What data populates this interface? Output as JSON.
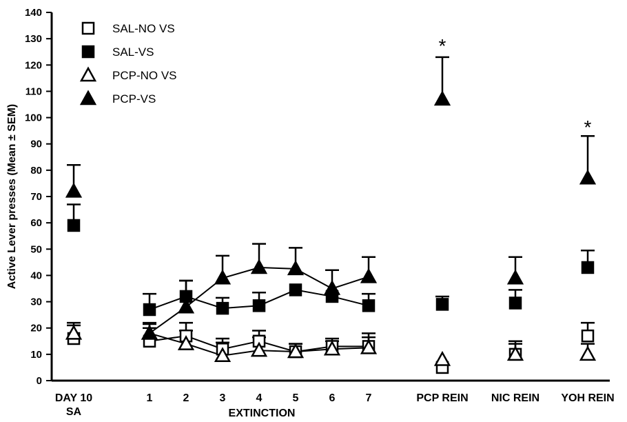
{
  "chart_data": {
    "type": "scatter",
    "ylabel": "Active Lever presses (Mean ± SEM)",
    "xlabel": "EXTINCTION",
    "ylim": [
      0,
      140
    ],
    "yticks": [
      0,
      10,
      20,
      30,
      40,
      50,
      60,
      70,
      80,
      90,
      100,
      110,
      120,
      130,
      140
    ],
    "grid": false,
    "legend_position": "top-left",
    "categories": [
      {
        "id": "day10",
        "lines": [
          "DAY 10",
          "SA"
        ]
      },
      {
        "id": "e1",
        "lines": [
          "1"
        ]
      },
      {
        "id": "e2",
        "lines": [
          "2"
        ]
      },
      {
        "id": "e3",
        "lines": [
          "3"
        ]
      },
      {
        "id": "e4",
        "lines": [
          "4"
        ]
      },
      {
        "id": "e5",
        "lines": [
          "5"
        ]
      },
      {
        "id": "e6",
        "lines": [
          "6"
        ]
      },
      {
        "id": "e7",
        "lines": [
          "7"
        ]
      },
      {
        "id": "pcp",
        "lines": [
          "PCP REIN"
        ]
      },
      {
        "id": "nic",
        "lines": [
          "NIC REIN"
        ]
      },
      {
        "id": "yoh",
        "lines": [
          "YOH REIN"
        ]
      }
    ],
    "connected_segment": [
      "e1",
      "e2",
      "e3",
      "e4",
      "e5",
      "e6",
      "e7"
    ],
    "series": [
      {
        "name": "SAL-NO VS",
        "marker": "square-open",
        "values": [
          16,
          15,
          17,
          12,
          15,
          11,
          13,
          13,
          5,
          10,
          17
        ],
        "sem": [
          5,
          5,
          5,
          4,
          4,
          3,
          3,
          5,
          0,
          5,
          5
        ]
      },
      {
        "name": "SAL-VS",
        "marker": "square-filled",
        "values": [
          59,
          27,
          32,
          27.5,
          28.5,
          34.5,
          32,
          28.5,
          29,
          29.5,
          43
        ],
        "sem": [
          8,
          6,
          6,
          4,
          5,
          0,
          0,
          4.5,
          3,
          5,
          6.5
        ]
      },
      {
        "name": "PCP-NO VS",
        "marker": "triangle-open",
        "values": [
          18,
          18,
          14,
          9.5,
          11.5,
          11,
          12,
          12.5,
          8,
          10,
          10
        ],
        "sem": [
          4,
          4,
          5,
          5,
          5,
          3,
          3,
          4,
          0,
          4,
          4
        ]
      },
      {
        "name": "PCP-VS",
        "marker": "triangle-filled",
        "values": [
          72,
          18,
          28,
          39,
          43,
          42.5,
          35,
          39.5,
          107,
          39,
          77
        ],
        "sem": [
          10,
          3.5,
          10,
          8.5,
          9,
          8,
          7,
          7.5,
          16,
          8,
          16
        ]
      }
    ],
    "annotations": [
      {
        "category": "pcp",
        "text": "*",
        "y": 128
      },
      {
        "category": "yoh",
        "text": "*",
        "y": 97
      }
    ]
  }
}
